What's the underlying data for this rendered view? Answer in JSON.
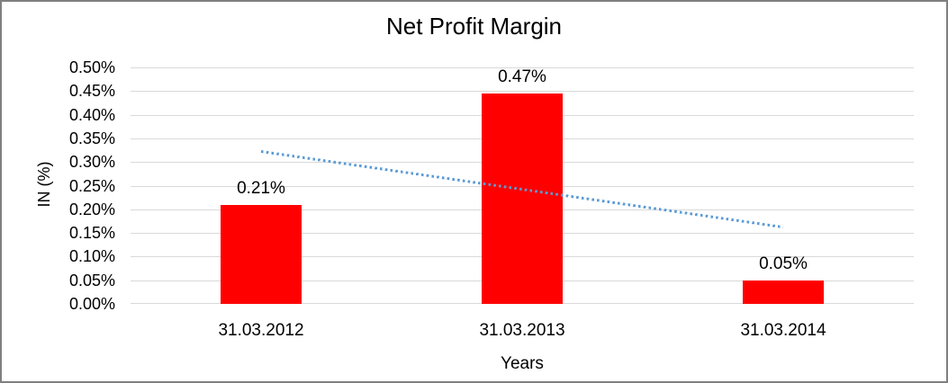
{
  "window": {
    "background": "#FFFFFF",
    "border_color": "#7F7F7F"
  },
  "chart_data": {
    "type": "bar",
    "title": "Net Profit Margin",
    "xlabel": "Years",
    "ylabel": "IN (%)",
    "categories": [
      "31.03.2012",
      "31.03.2013",
      "31.03.2014"
    ],
    "values": [
      0.21,
      0.47,
      0.05
    ],
    "value_labels": [
      "0.21%",
      "0.47%",
      "0.05%"
    ],
    "ylim": [
      0,
      0.5
    ],
    "ytick_step": 0.05,
    "ytick_labels": [
      "0.50%",
      "0.45%",
      "0.40%",
      "0.35%",
      "0.30%",
      "0.25%",
      "0.20%",
      "0.15%",
      "0.10%",
      "0.05%",
      "0.00%"
    ],
    "grid": true,
    "gridline_color": "#D9D9D9",
    "legend": "none",
    "bar_color": "#FF0000",
    "trendline": {
      "type": "linear",
      "style": "dotted",
      "color": "#5B9BD5",
      "start_value": 0.323,
      "end_value": 0.163
    }
  }
}
